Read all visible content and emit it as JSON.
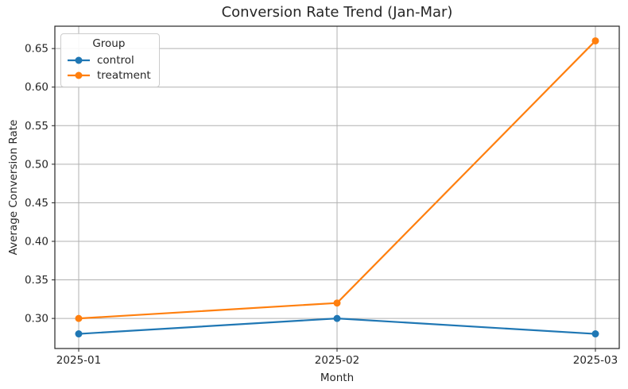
{
  "chart_data": {
    "type": "line",
    "title": "Conversion Rate Trend (Jan-Mar)",
    "xlabel": "Month",
    "ylabel": "Average Conversion Rate",
    "categories": [
      "2025-01",
      "2025-02",
      "2025-03"
    ],
    "series": [
      {
        "name": "control",
        "color": "#1f77b4",
        "values": [
          0.28,
          0.3,
          0.28
        ]
      },
      {
        "name": "treatment",
        "color": "#ff7f0e",
        "values": [
          0.3,
          0.32,
          0.66
        ]
      }
    ],
    "yticks": [
      0.3,
      0.35,
      0.4,
      0.45,
      0.5,
      0.55,
      0.6,
      0.65
    ],
    "ytick_labels": [
      "0.30",
      "0.35",
      "0.40",
      "0.45",
      "0.50",
      "0.55",
      "0.60",
      "0.65"
    ],
    "ylim": [
      0.261,
      0.679
    ],
    "grid": true,
    "marker": "circle",
    "legend": {
      "title": "Group",
      "position": "upper-left",
      "entries": [
        "control",
        "treatment"
      ]
    },
    "colors": {
      "grid": "#b0b0b0",
      "axis": "#262626",
      "text": "#262626",
      "background": "#ffffff"
    }
  }
}
